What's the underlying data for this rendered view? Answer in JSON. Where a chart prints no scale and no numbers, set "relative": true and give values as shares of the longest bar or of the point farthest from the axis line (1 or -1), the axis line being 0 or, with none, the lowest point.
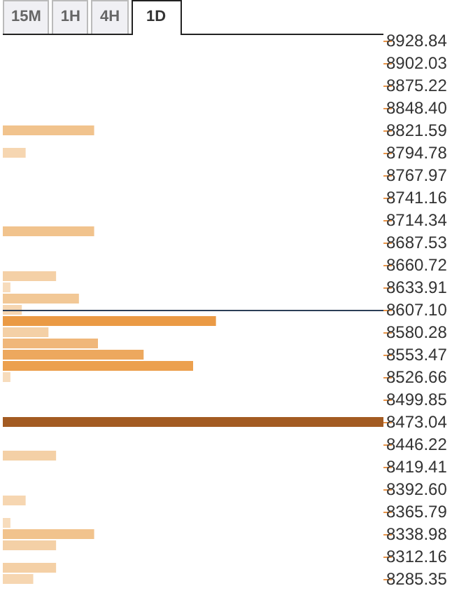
{
  "chart_data": {
    "type": "bar",
    "orientation": "horizontal",
    "relative": true,
    "annotations": [
      "15M",
      "1H",
      "4H",
      "1D"
    ],
    "categories": [
      "8928.84",
      null,
      "8902.03",
      null,
      "8875.22",
      null,
      "8848.40",
      null,
      "8821.59",
      null,
      "8794.78",
      null,
      "8767.97",
      null,
      "8741.16",
      null,
      "8714.34",
      null,
      "8687.53",
      null,
      "8660.72",
      null,
      "8633.91",
      null,
      "8607.10",
      null,
      "8580.28",
      null,
      "8553.47",
      null,
      "8526.66",
      null,
      "8499.85",
      null,
      "8473.04",
      null,
      "8446.22",
      null,
      "8419.41",
      null,
      "8392.60",
      null,
      "8365.79",
      null,
      "8338.98",
      null,
      "8312.16",
      null,
      "8285.35",
      null
    ],
    "values": [
      null,
      null,
      null,
      null,
      null,
      null,
      null,
      null,
      0.24,
      null,
      0.06,
      null,
      null,
      null,
      null,
      null,
      null,
      0.24,
      null,
      null,
      null,
      0.14,
      0.02,
      0.2,
      0.05,
      0.56,
      0.12,
      0.25,
      0.37,
      0.5,
      0.02,
      null,
      null,
      null,
      1,
      null,
      null,
      0.14,
      null,
      null,
      null,
      0.06,
      null,
      0.02,
      0.24,
      0.14,
      null,
      0.14,
      0.08,
      null
    ],
    "colors": [
      null,
      null,
      null,
      null,
      null,
      null,
      null,
      null,
      "#f1c38d",
      null,
      "#f6d6b1",
      null,
      null,
      null,
      null,
      null,
      null,
      "#f1c38d",
      null,
      null,
      null,
      "#f4d0a6",
      "#f7dcbc",
      "#f2c896",
      "#f6d6b1",
      "#ea9a45",
      "#f4d0a6",
      "#f0b77a",
      "#eda85e",
      "#eca04e",
      "#f7dcbc",
      null,
      null,
      null,
      "#a35b22",
      null,
      null,
      "#f4d0a6",
      null,
      null,
      null,
      "#f6d6b1",
      null,
      "#f7dcbc",
      "#f1c38d",
      "#f4d0a6",
      null,
      "#f4d0a6",
      "#f6d6b1",
      null
    ],
    "ref_lines": [
      {
        "axis": "y",
        "value": "8607.10",
        "color": "#2c3e57"
      }
    ]
  }
}
